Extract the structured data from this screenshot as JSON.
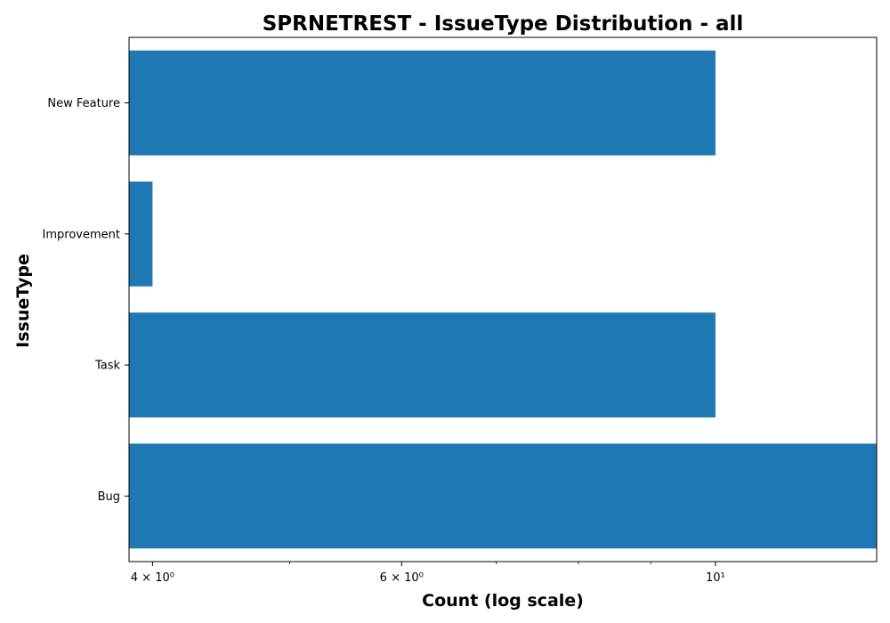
{
  "chart_data": {
    "type": "bar",
    "orientation": "horizontal",
    "title": "SPRNETREST - IssueType Distribution - all",
    "xlabel": "Count (log scale)",
    "ylabel": "IssueType",
    "x_scale": "log",
    "xlim": [
      3.85,
      13
    ],
    "categories": [
      "Bug",
      "Task",
      "Improvement",
      "New Feature"
    ],
    "values": [
      13,
      10,
      4,
      10
    ],
    "x_ticks": [
      {
        "value": 4,
        "label": "4 × 10⁰"
      },
      {
        "value": 6,
        "label": "6 × 10⁰"
      },
      {
        "value": 10,
        "label": "10¹"
      }
    ],
    "x_minor_ticks": [
      5,
      7,
      8,
      9
    ],
    "bar_color": "#1f77b4",
    "grid": false,
    "legend": "none"
  }
}
